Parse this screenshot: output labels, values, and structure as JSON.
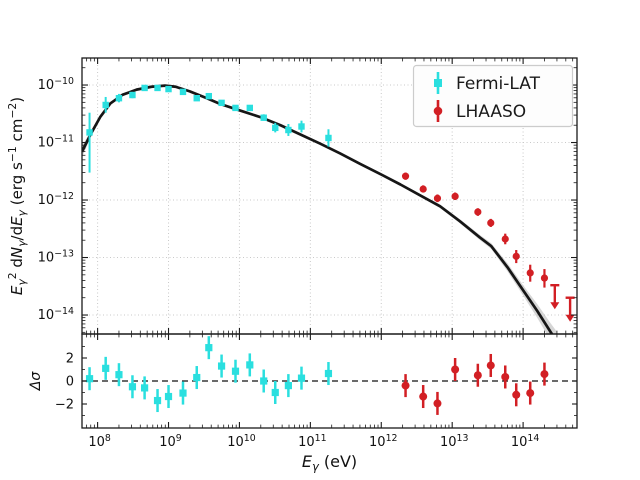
{
  "figure": {
    "background": "#ffffff",
    "frame_color": "#1a1a1a",
    "grid_color": "#c9c9c9",
    "text_color": "#111111"
  },
  "labels": {
    "x_axis_plain": "Eγ (eV)",
    "x_axis_segments": [
      [
        "E",
        "i"
      ],
      [
        "γ",
        "sub"
      ],
      [
        " (eV)",
        "n"
      ]
    ],
    "y_axis_plain": "Eγ² dNγ/dEγ (erg s⁻¹ cm⁻²)",
    "y_axis_segments": [
      [
        "E",
        "i"
      ],
      [
        "γ",
        "sub"
      ],
      [
        "2",
        "sup"
      ],
      [
        " d",
        "n"
      ],
      [
        "N",
        "i"
      ],
      [
        "γ",
        "sub"
      ],
      [
        "/d",
        "n"
      ],
      [
        "E",
        "i"
      ],
      [
        "γ",
        "sub"
      ],
      [
        " (erg s",
        "n"
      ],
      [
        "−1",
        "sup"
      ],
      [
        " cm",
        "n"
      ],
      [
        "−2",
        "sup"
      ],
      [
        ")",
        "n"
      ]
    ],
    "residual_axis_plain": "Δσ",
    "residual_axis_segments": [
      [
        "Δσ",
        "i"
      ]
    ]
  },
  "legend": {
    "position": "upper right",
    "items": [
      {
        "label": "Fermi-LAT",
        "color": "#2adfdf",
        "marker": "square"
      },
      {
        "label": "LHAASO",
        "color": "#d21f24",
        "marker": "circle"
      }
    ]
  },
  "chart_data": [
    {
      "type": "scatter",
      "panel": "main",
      "xscale": "log",
      "yscale": "log",
      "xlim_log10": [
        7.78,
        14.76
      ],
      "ylim_log10": [
        -14.33,
        -9.53
      ],
      "x_tick_exponents": [
        8,
        9,
        10,
        11,
        12,
        13,
        14
      ],
      "y_tick_exponents": [
        -10,
        -11,
        -12,
        -13,
        -14
      ],
      "grid": true,
      "series": [
        {
          "name": "Fermi-LAT",
          "marker": "square",
          "color": "#2adfdf",
          "x_eV": [
            77000000.0,
            130000000.0,
            200000000.0,
            310000000.0,
            460000000.0,
            700000000.0,
            1000000000.0,
            1600000000.0,
            2500000000.0,
            3700000000.0,
            5600000000.0,
            8800000000.0,
            14000000000.0,
            22000000000.0,
            32000000000.0,
            49000000000.0,
            75000000000.0,
            180000000000.0
          ],
          "y": [
            1.5e-11,
            4.5e-11,
            5.9e-11,
            6.7e-11,
            8.9e-11,
            8.9e-11,
            8.5e-11,
            7.6e-11,
            5.9e-11,
            6.4e-11,
            4.9e-11,
            4e-11,
            4e-11,
            2.7e-11,
            1.8e-11,
            1.65e-11,
            1.9e-11,
            1.2e-11
          ],
          "y_lo": [
            3e-12,
            3.3e-11,
            5e-11,
            5.9e-11,
            8.1e-11,
            8.2e-11,
            7.9e-11,
            7e-11,
            5.4e-11,
            5.9e-11,
            4.4e-11,
            3.6e-11,
            3.6e-11,
            2.4e-11,
            1.5e-11,
            1.3e-11,
            1.5e-11,
            8.5e-12
          ],
          "y_hi": [
            3.3e-11,
            6.2e-11,
            7e-11,
            7.6e-11,
            9.8e-11,
            9.7e-11,
            9.2e-11,
            8.2e-11,
            6.5e-11,
            7e-11,
            5.4e-11,
            4.4e-11,
            4.4e-11,
            3.1e-11,
            2.2e-11,
            2.1e-11,
            2.4e-11,
            1.7e-11
          ]
        },
        {
          "name": "LHAASO",
          "marker": "circle",
          "color": "#d21f24",
          "x_eV": [
            2200000000000.0,
            3900000000000.0,
            6200000000000.0,
            11000000000000.0,
            23000000000000.0,
            35000000000000.0,
            56000000000000.0,
            80000000000000.0,
            126000000000000.0,
            200000000000000.0
          ],
          "y": [
            2.6e-12,
            1.55e-12,
            1.07e-12,
            1.16e-12,
            6.2e-13,
            4e-13,
            2.1e-13,
            1.05e-13,
            5.4e-14,
            4.4e-14
          ],
          "y_lo": [
            2.25e-12,
            1.35e-12,
            9.2e-13,
            1e-12,
            5.3e-13,
            3.4e-13,
            1.7e-13,
            8e-14,
            3.8e-14,
            3e-14
          ],
          "y_hi": [
            3e-12,
            1.8e-12,
            1.25e-12,
            1.35e-12,
            7.2e-13,
            4.7e-13,
            2.6e-13,
            1.35e-13,
            7.5e-14,
            6.3e-14
          ]
        },
        {
          "name": "LHAASO upper limits",
          "marker": "down-arrow",
          "color": "#d21f24",
          "x_eV": [
            280000000000000.0,
            460000000000000.0
          ],
          "y": [
            3.3e-14,
            2e-14
          ]
        },
        {
          "name": "model fit",
          "type": "line",
          "color": "#161616",
          "band_color": "#b5b5b5",
          "x_log10": [
            7.78,
            7.9,
            8.04,
            8.18,
            8.35,
            8.55,
            8.76,
            8.95,
            9.1,
            9.3,
            9.52,
            9.73,
            10.0,
            10.3,
            10.58,
            10.86,
            11.14,
            11.42,
            11.7,
            11.99,
            12.27,
            12.55,
            12.83,
            13.11,
            13.39,
            13.55,
            13.78,
            14.0,
            14.2,
            14.38,
            14.47
          ],
          "y_log10": [
            -11.16,
            -10.86,
            -10.55,
            -10.32,
            -10.17,
            -10.08,
            -10.03,
            -10.01,
            -10.03,
            -10.11,
            -10.22,
            -10.33,
            -10.44,
            -10.56,
            -10.7,
            -10.86,
            -11.02,
            -11.19,
            -11.37,
            -11.55,
            -11.73,
            -11.92,
            -12.11,
            -12.37,
            -12.65,
            -12.8,
            -13.17,
            -13.57,
            -13.93,
            -14.28,
            -14.45
          ],
          "band_dex": [
            0.1,
            0.05,
            0.03,
            0.02,
            0.015,
            0.012,
            0.01,
            0.01,
            0.01,
            0.01,
            0.01,
            0.01,
            0.012,
            0.012,
            0.012,
            0.012,
            0.015,
            0.015,
            0.018,
            0.02,
            0.022,
            0.025,
            0.03,
            0.035,
            0.045,
            0.05,
            0.07,
            0.09,
            0.12,
            0.15,
            0.17
          ]
        }
      ]
    },
    {
      "type": "scatter",
      "panel": "residuals",
      "ylim": [
        -4.09,
        4.09
      ],
      "y_ticks": [
        -2,
        0,
        2
      ],
      "zero_line": "dashed",
      "series": [
        {
          "name": "Fermi-LAT residuals",
          "marker": "square",
          "color": "#2adfdf",
          "x_eV": [
            77000000.0,
            130000000.0,
            200000000.0,
            310000000.0,
            460000000.0,
            700000000.0,
            1000000000.0,
            1600000000.0,
            2500000000.0,
            3700000000.0,
            5600000000.0,
            8800000000.0,
            14000000000.0,
            22000000000.0,
            32000000000.0,
            49000000000.0,
            75000000000.0,
            180000000000.0
          ],
          "sigma": [
            0.2,
            1.1,
            0.55,
            -0.5,
            -0.6,
            -1.7,
            -1.35,
            -1.05,
            0.3,
            2.9,
            1.3,
            0.85,
            1.4,
            0.0,
            -1.0,
            -0.4,
            0.25,
            0.65
          ],
          "sigma_err": 1.0
        },
        {
          "name": "LHAASO residuals",
          "marker": "circle",
          "color": "#d21f24",
          "x_eV": [
            2200000000000.0,
            3900000000000.0,
            6200000000000.0,
            11000000000000.0,
            23000000000000.0,
            35000000000000.0,
            56000000000000.0,
            80000000000000.0,
            126000000000000.0,
            200000000000000.0
          ],
          "sigma": [
            -0.4,
            -1.35,
            -1.95,
            1.0,
            0.5,
            1.35,
            0.35,
            -1.2,
            -1.05,
            0.6
          ],
          "sigma_err": 1.0
        }
      ]
    }
  ]
}
